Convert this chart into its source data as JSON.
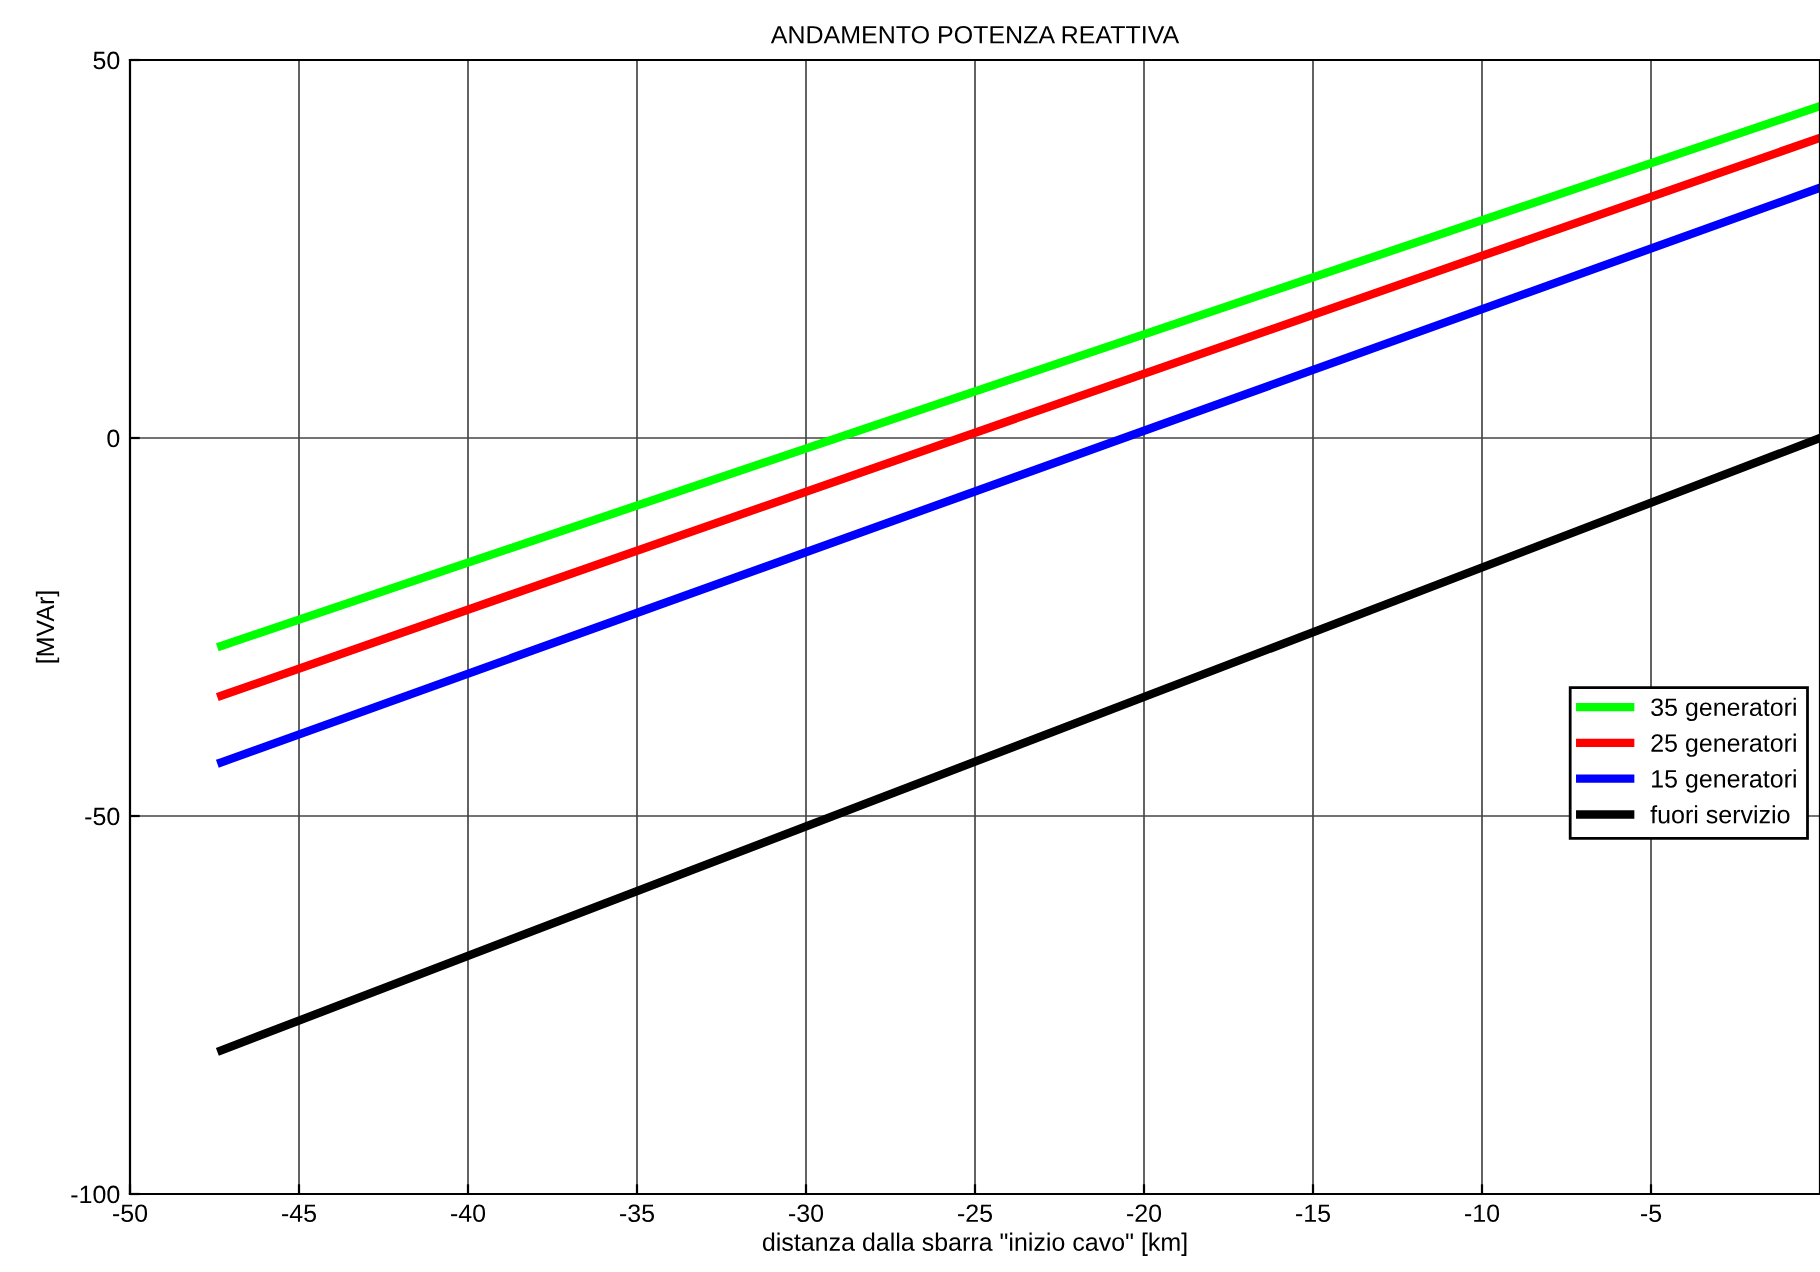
{
  "chart_data": {
    "type": "line",
    "title": "ANDAMENTO POTENZA REATTIVA",
    "xlabel": "distanza dalla sbarra \"inizio cavo\" [km]",
    "ylabel": "[MVAr]",
    "x": [
      -47.3,
      0
    ],
    "series": [
      {
        "name": "35 generatori",
        "color": "#00ff00",
        "values": [
          -27.5,
          43.9
        ]
      },
      {
        "name": "25 generatori",
        "color": "#ff0000",
        "values": [
          -34.1,
          39.7
        ]
      },
      {
        "name": "15 generatori",
        "color": "#0000ff",
        "values": [
          -42.9,
          33.1
        ]
      },
      {
        "name": "fuori servizio",
        "color": "#000000",
        "values": [
          -81,
          0
        ]
      }
    ],
    "xlim": [
      -50,
      0
    ],
    "xticks": [
      -50,
      -45,
      -40,
      -35,
      -30,
      -25,
      -20,
      -15,
      -10,
      -5
    ],
    "ylim": [
      -100,
      50
    ],
    "yticks": [
      -100,
      -50,
      0,
      50
    ],
    "grid": true,
    "legend": "right",
    "line_style": "solid",
    "marker": "none"
  }
}
